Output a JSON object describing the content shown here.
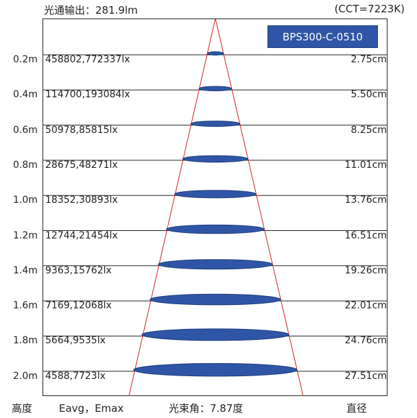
{
  "header": {
    "output_label": "光通输出：281.9lm",
    "cct_label": "(CCT=7223K)"
  },
  "badge": {
    "model": "BPS300-C-0510"
  },
  "rows": [
    {
      "distance": "0.2m",
      "lux": "458802,772337lx",
      "diameter": "2.75cm"
    },
    {
      "distance": "0.4m",
      "lux": "114700,193084lx",
      "diameter": "5.50cm"
    },
    {
      "distance": "0.6m",
      "lux": "50978,85815lx",
      "diameter": "8.25cm"
    },
    {
      "distance": "0.8m",
      "lux": "28675,48271lx",
      "diameter": "11.01cm"
    },
    {
      "distance": "1.0m",
      "lux": "18352,30893lx",
      "diameter": "13.76cm"
    },
    {
      "distance": "1.2m",
      "lux": "12744,21454lx",
      "diameter": "16.51cm"
    },
    {
      "distance": "1.4m",
      "lux": "9363,15762lx",
      "diameter": "19.26cm"
    },
    {
      "distance": "1.6m",
      "lux": "7169,12068lx",
      "diameter": "22.01cm"
    },
    {
      "distance": "1.8m",
      "lux": "5664,9535lx",
      "diameter": "24.76cm"
    },
    {
      "distance": "2.0m",
      "lux": "4588,7723lx",
      "diameter": "27.51cm"
    }
  ],
  "footer": {
    "height_label": "高度",
    "lux_label": "Eavg，Emax",
    "beam_angle_label": "光束角：7.87度",
    "diameter_label": "直径"
  },
  "colors": {
    "beam_lines": "#d42020",
    "spot_fill": "#2f56a6",
    "spot_stroke": "#1d3a78",
    "badge_bg": "#2f56a6"
  }
}
